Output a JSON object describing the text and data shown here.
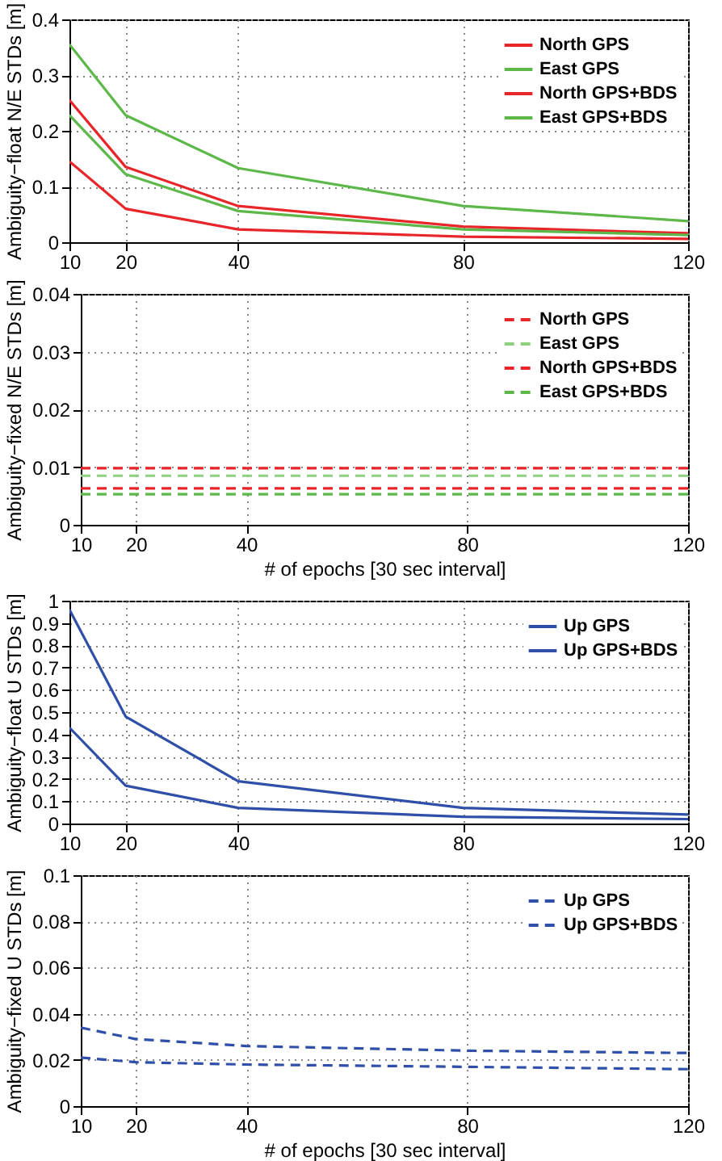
{
  "chart_data": [
    {
      "type": "line",
      "ylabel": "Ambiguity−float N/E STDs [m]",
      "x": [
        10,
        20,
        40,
        80,
        120
      ],
      "xlim": [
        10,
        120
      ],
      "xticks": [
        10,
        20,
        40,
        80,
        120
      ],
      "ylim": [
        0,
        0.4
      ],
      "yticks": [
        0,
        0.1,
        0.2,
        0.3,
        0.4
      ],
      "grid": true,
      "legend": "top right",
      "series": [
        {
          "name": "North GPS",
          "color": "#e8262a",
          "line_style": "solid",
          "values": [
            0.255,
            0.135,
            0.065,
            0.028,
            0.016
          ]
        },
        {
          "name": "East GPS",
          "color": "#5cb848",
          "line_style": "solid",
          "values": [
            0.355,
            0.228,
            0.133,
            0.065,
            0.038
          ]
        },
        {
          "name": "North GPS+BDS",
          "color": "#e8262a",
          "line_style": "solid",
          "values": [
            0.145,
            0.06,
            0.023,
            0.01,
            0.006
          ]
        },
        {
          "name": "East GPS+BDS",
          "color": "#5cb848",
          "line_style": "solid",
          "values": [
            0.228,
            0.122,
            0.056,
            0.023,
            0.013
          ]
        }
      ]
    },
    {
      "type": "line",
      "ylabel": "Ambiguity−fixed N/E STDs [m]",
      "xlabel": "# of epochs [30 sec interval]",
      "x": [
        10,
        20,
        40,
        80,
        120
      ],
      "xlim": [
        10,
        120
      ],
      "xticks": [
        10,
        20,
        40,
        80,
        120
      ],
      "ylim": [
        0,
        0.04
      ],
      "yticks": [
        0,
        0.01,
        0.02,
        0.03,
        0.04
      ],
      "grid": true,
      "legend": "top right",
      "series": [
        {
          "name": "North GPS",
          "color": "#e8262a",
          "line_style": "dashed",
          "values": [
            0.0098,
            0.0098,
            0.0098,
            0.0098,
            0.0098
          ]
        },
        {
          "name": "East GPS",
          "color": "#8fd07e",
          "line_style": "dashed",
          "values": [
            0.0085,
            0.0085,
            0.0085,
            0.0085,
            0.0085
          ]
        },
        {
          "name": "North GPS+BDS",
          "color": "#e8262a",
          "line_style": "dashed",
          "values": [
            0.0063,
            0.0063,
            0.0063,
            0.0063,
            0.0063
          ]
        },
        {
          "name": "East GPS+BDS",
          "color": "#5cb848",
          "line_style": "dashed",
          "values": [
            0.0053,
            0.0053,
            0.0053,
            0.0053,
            0.0053
          ]
        }
      ]
    },
    {
      "type": "line",
      "ylabel": "Ambiguity−float U STDs [m]",
      "x": [
        10,
        20,
        40,
        80,
        120
      ],
      "xlim": [
        10,
        120
      ],
      "xticks": [
        10,
        20,
        40,
        80,
        120
      ],
      "ylim": [
        0,
        1
      ],
      "yticks": [
        0,
        0.1,
        0.2,
        0.3,
        0.4,
        0.5,
        0.6,
        0.7,
        0.8,
        0.9,
        1
      ],
      "grid": true,
      "legend": "top right",
      "series": [
        {
          "name": "Up GPS",
          "color": "#2f4fa8",
          "line_style": "solid",
          "values": [
            0.96,
            0.48,
            0.19,
            0.07,
            0.04
          ]
        },
        {
          "name": "Up GPS+BDS",
          "color": "#2f4fa8",
          "line_style": "solid",
          "values": [
            0.43,
            0.17,
            0.07,
            0.03,
            0.02
          ]
        }
      ]
    },
    {
      "type": "line",
      "ylabel": "Ambiguity−fixed U STDs [m]",
      "xlabel": "# of epochs [30 sec interval]",
      "x": [
        10,
        20,
        40,
        80,
        120
      ],
      "xlim": [
        10,
        120
      ],
      "xticks": [
        10,
        20,
        40,
        80,
        120
      ],
      "ylim": [
        0,
        0.1
      ],
      "yticks": [
        0,
        0.02,
        0.04,
        0.06,
        0.08,
        0.1
      ],
      "grid": true,
      "legend": "top right",
      "series": [
        {
          "name": "Up GPS",
          "color": "#2f4fa8",
          "line_style": "dashed",
          "values": [
            0.034,
            0.029,
            0.026,
            0.024,
            0.023
          ]
        },
        {
          "name": "Up GPS+BDS",
          "color": "#2f4fa8",
          "line_style": "dashed",
          "values": [
            0.021,
            0.019,
            0.018,
            0.017,
            0.016
          ]
        }
      ]
    }
  ]
}
